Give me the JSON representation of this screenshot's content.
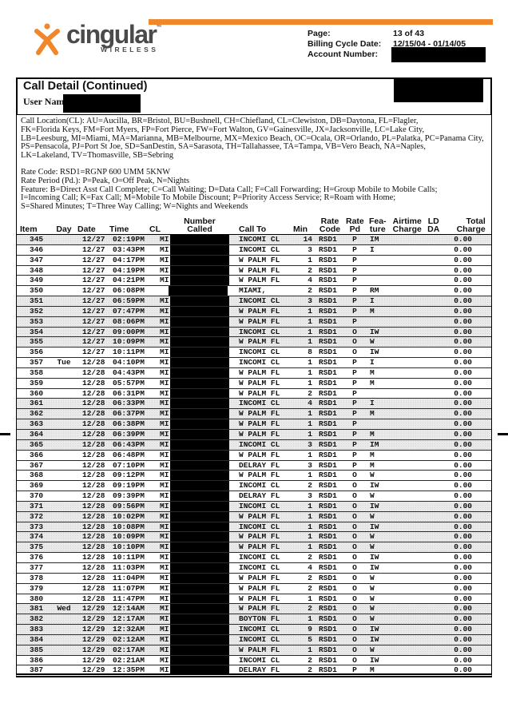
{
  "colors": {
    "accent_orange": "#F0872B",
    "logo_gray": "#4A4A4C",
    "row_shading": "#E9E9E9",
    "redaction": "#000000"
  },
  "header": {
    "logo_text": "cingular",
    "logo_tm": "™",
    "logo_subtext": "WIRELESS",
    "page_label": "Page:",
    "page_value": "13 of 43",
    "billing_label": "Billing Cycle Date:",
    "billing_value": "12/15/04 - 01/14/05",
    "account_label": "Account Number:"
  },
  "section": {
    "title": "Call Detail (Continued)",
    "user_name_label": "User Name:"
  },
  "legend": {
    "lines": [
      "Call Location(CL):   AU=Aucilla, BR=Bristol, BU=Bushnell, CH=Chiefland, CL=Clewiston, DB=Daytona, FL=Flagler,",
      "FK=Florida Keys, FM=Fort Myers, FP=Fort Pierce, FW=Fort Walton, GV=Gainesville, JX=Jacksonville, LC=Lake City,",
      "LB=Leesburg, MI=Miami, MA=Marianna, MB=Melbourne, MX=Mexico Beach, OC=Ocala, OR=Orlando, PL=Palatka, PC=Panama City,",
      "PS=Pensacola, PJ=Port St Joe, SD=SanDestin, SA=Sarasota, TH=Tallahassee, TA=Tampa, VB=Vero Beach, NA=Naples,",
      "LK=Lakeland, TV=Thomasville, SB=Sebring"
    ]
  },
  "rates": {
    "lines": [
      "Rate Code: RSD1=RGNP 600 UMM 5KNW",
      "Rate Period (Pd.): P=Peak, O=Off Peak, N=Nights",
      "Feature: B=Direct Asst Call Complete; C=Call Waiting; D=Data Call; F=Call Forwarding; H=Group Mobile to Mobile Calls;",
      "I=Incoming Call; K=Fax Call; M=Mobile To Mobile Discount; P=Priority Access Service; R=Roam with Home;",
      "S=Shared Minutes;  T=Three Way Calling; W=Nights and Weekends"
    ]
  },
  "table": {
    "columns": [
      {
        "key": "item",
        "label": "Item"
      },
      {
        "key": "day",
        "label": "Day"
      },
      {
        "key": "date",
        "label": "Date"
      },
      {
        "key": "time",
        "label": "Time"
      },
      {
        "key": "cl",
        "label": "CL"
      },
      {
        "key": "number",
        "label": "Number\nCalled"
      },
      {
        "key": "call_to",
        "label": "Call To"
      },
      {
        "key": "min",
        "label": "Min"
      },
      {
        "key": "rate_code",
        "label": "Rate\nCode"
      },
      {
        "key": "rate_pd",
        "label": "Rate\nPd"
      },
      {
        "key": "feature",
        "label": "Fea-\nture"
      },
      {
        "key": "airtime",
        "label": "Airtime\nCharge"
      },
      {
        "key": "ld_da",
        "label": "LD\nDA"
      },
      {
        "key": "total",
        "label": "Total\nCharge"
      }
    ],
    "rows": [
      {
        "item": "345",
        "date": "12/27",
        "time": "02:19PM",
        "cl": "MI",
        "call_to": "INCOMI CL",
        "min": "14",
        "rate_code": "RSD1",
        "rate_pd": "P",
        "feature": "IM",
        "total": "0.00"
      },
      {
        "item": "346",
        "date": "12/27",
        "time": "03:43PM",
        "cl": "MI",
        "call_to": "INCOMI CL",
        "min": "3",
        "rate_code": "RSD1",
        "rate_pd": "P",
        "feature": "I",
        "total": "0.00"
      },
      {
        "item": "347",
        "date": "12/27",
        "time": "04:17PM",
        "cl": "MI",
        "call_to": "W PALM FL",
        "min": "1",
        "rate_code": "RSD1",
        "rate_pd": "P",
        "feature": "",
        "total": "0.00"
      },
      {
        "item": "348",
        "date": "12/27",
        "time": "04:19PM",
        "cl": "MI",
        "call_to": "W PALM FL",
        "min": "2",
        "rate_code": "RSD1",
        "rate_pd": "P",
        "feature": "",
        "total": "0.00"
      },
      {
        "item": "349",
        "date": "12/27",
        "time": "04:21PM",
        "cl": "MI",
        "call_to": "W PALM FL",
        "min": "4",
        "rate_code": "RSD1",
        "rate_pd": "P",
        "feature": "",
        "total": "0.00"
      },
      {
        "item": "350",
        "date": "12/27",
        "time": "06:08PM",
        "cl": "",
        "call_to": "MIAMI,",
        "min": "2",
        "rate_code": "RSD1",
        "rate_pd": "P",
        "feature": "RM",
        "total": "0.00"
      },
      {
        "item": "351",
        "date": "12/27",
        "time": "06:59PM",
        "cl": "MI",
        "call_to": "INCOMI CL",
        "min": "3",
        "rate_code": "RSD1",
        "rate_pd": "P",
        "feature": "I",
        "total": "0.00"
      },
      {
        "item": "352",
        "date": "12/27",
        "time": "07:47PM",
        "cl": "MI",
        "call_to": "W PALM FL",
        "min": "1",
        "rate_code": "RSD1",
        "rate_pd": "P",
        "feature": "M",
        "total": "0.00"
      },
      {
        "item": "353",
        "date": "12/27",
        "time": "08:06PM",
        "cl": "MI",
        "call_to": "W PALM FL",
        "min": "1",
        "rate_code": "RSD1",
        "rate_pd": "P",
        "feature": "",
        "total": "0.00"
      },
      {
        "item": "354",
        "date": "12/27",
        "time": "09:00PM",
        "cl": "MI",
        "call_to": "INCOMI CL",
        "min": "1",
        "rate_code": "RSD1",
        "rate_pd": "O",
        "feature": "IW",
        "total": "0.00"
      },
      {
        "item": "355",
        "date": "12/27",
        "time": "10:09PM",
        "cl": "MI",
        "call_to": "W PALM FL",
        "min": "1",
        "rate_code": "RSD1",
        "rate_pd": "O",
        "feature": "W",
        "total": "0.00"
      },
      {
        "item": "356",
        "date": "12/27",
        "time": "10:11PM",
        "cl": "MI",
        "call_to": "INCOMI CL",
        "min": "8",
        "rate_code": "RSD1",
        "rate_pd": "O",
        "feature": "IW",
        "total": "0.00"
      },
      {
        "item": "357",
        "day": "Tue",
        "date": "12/28",
        "time": "04:10PM",
        "cl": "MI",
        "call_to": "INCOMI CL",
        "min": "1",
        "rate_code": "RSD1",
        "rate_pd": "P",
        "feature": "I",
        "total": "0.00"
      },
      {
        "item": "358",
        "date": "12/28",
        "time": "04:43PM",
        "cl": "MI",
        "call_to": "W PALM FL",
        "min": "1",
        "rate_code": "RSD1",
        "rate_pd": "P",
        "feature": "M",
        "total": "0.00"
      },
      {
        "item": "359",
        "date": "12/28",
        "time": "05:57PM",
        "cl": "MI",
        "call_to": "W PALM FL",
        "min": "1",
        "rate_code": "RSD1",
        "rate_pd": "P",
        "feature": "M",
        "total": "0.00"
      },
      {
        "item": "360",
        "date": "12/28",
        "time": "06:31PM",
        "cl": "MI",
        "call_to": "W PALM FL",
        "min": "2",
        "rate_code": "RSD1",
        "rate_pd": "P",
        "feature": "",
        "total": "0.00"
      },
      {
        "item": "361",
        "date": "12/28",
        "time": "06:33PM",
        "cl": "MI",
        "call_to": "INCOMI CL",
        "min": "4",
        "rate_code": "RSD1",
        "rate_pd": "P",
        "feature": "I",
        "total": "0.00"
      },
      {
        "item": "362",
        "date": "12/28",
        "time": "06:37PM",
        "cl": "MI",
        "call_to": "W PALM FL",
        "min": "1",
        "rate_code": "RSD1",
        "rate_pd": "P",
        "feature": "M",
        "total": "0.00"
      },
      {
        "item": "363",
        "date": "12/28",
        "time": "06:38PM",
        "cl": "MI",
        "call_to": "W PALM FL",
        "min": "1",
        "rate_code": "RSD1",
        "rate_pd": "P",
        "feature": "",
        "total": "0.00"
      },
      {
        "item": "364",
        "date": "12/28",
        "time": "06:39PM",
        "cl": "MI",
        "call_to": "W PALM FL",
        "min": "1",
        "rate_code": "RSD1",
        "rate_pd": "P",
        "feature": "M",
        "total": "0.00"
      },
      {
        "item": "365",
        "date": "12/28",
        "time": "06:43PM",
        "cl": "MI",
        "call_to": "INCOMI CL",
        "min": "3",
        "rate_code": "RSD1",
        "rate_pd": "P",
        "feature": "IM",
        "total": "0.00"
      },
      {
        "item": "366",
        "date": "12/28",
        "time": "06:48PM",
        "cl": "MI",
        "call_to": "W PALM FL",
        "min": "1",
        "rate_code": "RSD1",
        "rate_pd": "P",
        "feature": "M",
        "total": "0.00"
      },
      {
        "item": "367",
        "date": "12/28",
        "time": "07:10PM",
        "cl": "MI",
        "call_to": "DELRAY FL",
        "min": "3",
        "rate_code": "RSD1",
        "rate_pd": "P",
        "feature": "M",
        "total": "0.00"
      },
      {
        "item": "368",
        "date": "12/28",
        "time": "09:12PM",
        "cl": "MI",
        "call_to": "W PALM FL",
        "min": "1",
        "rate_code": "RSD1",
        "rate_pd": "O",
        "feature": "W",
        "total": "0.00"
      },
      {
        "item": "369",
        "date": "12/28",
        "time": "09:19PM",
        "cl": "MI",
        "call_to": "INCOMI CL",
        "min": "2",
        "rate_code": "RSD1",
        "rate_pd": "O",
        "feature": "IW",
        "total": "0.00"
      },
      {
        "item": "370",
        "date": "12/28",
        "time": "09:39PM",
        "cl": "MI",
        "call_to": "DELRAY FL",
        "min": "3",
        "rate_code": "RSD1",
        "rate_pd": "O",
        "feature": "W",
        "total": "0.00"
      },
      {
        "item": "371",
        "date": "12/28",
        "time": "09:56PM",
        "cl": "MI",
        "call_to": "INCOMI CL",
        "min": "1",
        "rate_code": "RSD1",
        "rate_pd": "O",
        "feature": "IW",
        "total": "0.00"
      },
      {
        "item": "372",
        "date": "12/28",
        "time": "10:02PM",
        "cl": "MI",
        "call_to": "W PALM FL",
        "min": "1",
        "rate_code": "RSD1",
        "rate_pd": "O",
        "feature": "W",
        "total": "0.00"
      },
      {
        "item": "373",
        "date": "12/28",
        "time": "10:08PM",
        "cl": "MI",
        "call_to": "INCOMI CL",
        "min": "1",
        "rate_code": "RSD1",
        "rate_pd": "O",
        "feature": "IW",
        "total": "0.00"
      },
      {
        "item": "374",
        "date": "12/28",
        "time": "10:09PM",
        "cl": "MI",
        "call_to": "W PALM FL",
        "min": "1",
        "rate_code": "RSD1",
        "rate_pd": "O",
        "feature": "W",
        "total": "0.00"
      },
      {
        "item": "375",
        "date": "12/28",
        "time": "10:10PM",
        "cl": "MI",
        "call_to": "W PALM FL",
        "min": "1",
        "rate_code": "RSD1",
        "rate_pd": "O",
        "feature": "W",
        "total": "0.00"
      },
      {
        "item": "376",
        "date": "12/28",
        "time": "10:11PM",
        "cl": "MI",
        "call_to": "INCOMI CL",
        "min": "2",
        "rate_code": "RSD1",
        "rate_pd": "O",
        "feature": "IW",
        "total": "0.00"
      },
      {
        "item": "377",
        "date": "12/28",
        "time": "11:03PM",
        "cl": "MI",
        "call_to": "INCOMI CL",
        "min": "4",
        "rate_code": "RSD1",
        "rate_pd": "O",
        "feature": "IW",
        "total": "0.00"
      },
      {
        "item": "378",
        "date": "12/28",
        "time": "11:04PM",
        "cl": "MI",
        "call_to": "W PALM FL",
        "min": "2",
        "rate_code": "RSD1",
        "rate_pd": "O",
        "feature": "W",
        "total": "0.00"
      },
      {
        "item": "379",
        "date": "12/28",
        "time": "11:07PM",
        "cl": "MI",
        "call_to": "W PALM FL",
        "min": "2",
        "rate_code": "RSD1",
        "rate_pd": "O",
        "feature": "W",
        "total": "0.00"
      },
      {
        "item": "380",
        "date": "12/28",
        "time": "11:47PM",
        "cl": "MI",
        "call_to": "W PALM FL",
        "min": "1",
        "rate_code": "RSD1",
        "rate_pd": "O",
        "feature": "W",
        "total": "0.00"
      },
      {
        "item": "381",
        "day": "Wed",
        "date": "12/29",
        "time": "12:14AM",
        "cl": "MI",
        "call_to": "W PALM FL",
        "min": "2",
        "rate_code": "RSD1",
        "rate_pd": "O",
        "feature": "W",
        "total": "0.00"
      },
      {
        "item": "382",
        "date": "12/29",
        "time": "12:17AM",
        "cl": "MI",
        "call_to": "BOYTON FL",
        "min": "1",
        "rate_code": "RSD1",
        "rate_pd": "O",
        "feature": "W",
        "total": "0.00"
      },
      {
        "item": "383",
        "date": "12/29",
        "time": "12:32AM",
        "cl": "MI",
        "call_to": "INCOMI CL",
        "min": "9",
        "rate_code": "RSD1",
        "rate_pd": "O",
        "feature": "IW",
        "total": "0.00"
      },
      {
        "item": "384",
        "date": "12/29",
        "time": "02:12AM",
        "cl": "MI",
        "call_to": "INCOMI CL",
        "min": "5",
        "rate_code": "RSD1",
        "rate_pd": "O",
        "feature": "IW",
        "total": "0.00"
      },
      {
        "item": "385",
        "date": "12/29",
        "time": "02:17AM",
        "cl": "MI",
        "call_to": "W PALM FL",
        "min": "1",
        "rate_code": "RSD1",
        "rate_pd": "O",
        "feature": "W",
        "total": "0.00"
      },
      {
        "item": "386",
        "date": "12/29",
        "time": "02:21AM",
        "cl": "MI",
        "call_to": "INCOMI CL",
        "min": "2",
        "rate_code": "RSD1",
        "rate_pd": "O",
        "feature": "IW",
        "total": "0.00"
      },
      {
        "item": "387",
        "date": "12/29",
        "time": "12:35PM",
        "cl": "MI",
        "call_to": "DELRAY FL",
        "min": "2",
        "rate_code": "RSD1",
        "rate_pd": "P",
        "feature": "M",
        "total": "0.00"
      }
    ]
  }
}
